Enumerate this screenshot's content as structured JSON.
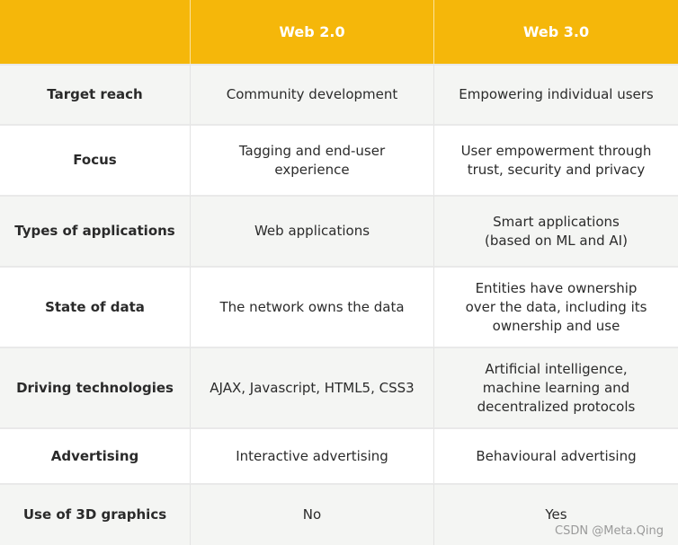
{
  "header": {
    "col0": "",
    "col1": "Web 2.0",
    "col2": "Web 3.0"
  },
  "rows": [
    {
      "label": "Target reach",
      "web2": "Community development",
      "web3": "Empowering individual users"
    },
    {
      "label": "Focus",
      "web2": "Tagging and end-user experience",
      "web3": "User empowerment through\ntrust, security and privacy"
    },
    {
      "label": "Types of applications",
      "web2": "Web applications",
      "web3": "Smart applications\n(based on  ML and AI)"
    },
    {
      "label": "State of data",
      "web2": "The network owns the data",
      "web3": "Entities have ownership\nover the data, including its\nownership and use"
    },
    {
      "label": "Driving technologies",
      "web2": "AJAX, Javascript, HTML5, CSS3",
      "web3": "Artificial intelligence,\nmachine learning and\ndecentralized protocols"
    },
    {
      "label": "Advertising",
      "web2": "Interactive advertising",
      "web3": "Behavioural advertising"
    },
    {
      "label": "Use of 3D graphics",
      "web2": "No",
      "web3": "Yes"
    }
  ],
  "watermark": "CSDN @Meta.Qing"
}
